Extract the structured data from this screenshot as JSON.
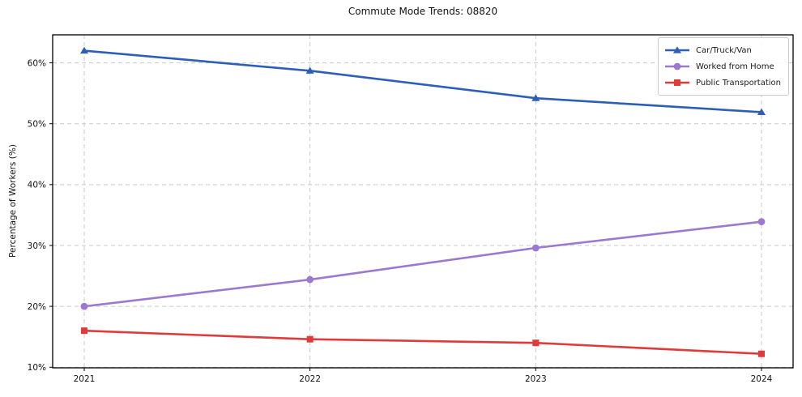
{
  "chart_data": {
    "type": "line",
    "title": "Commute Mode Trends: 08820",
    "xlabel": "",
    "ylabel": "Percentage of Workers (%)",
    "x": [
      2021,
      2022,
      2023,
      2024
    ],
    "series": [
      {
        "name": "Car/Truck/Van",
        "values": [
          62.0,
          58.7,
          54.2,
          51.9
        ],
        "color": "#2d5fb8",
        "marker": "triangle"
      },
      {
        "name": "Worked from Home",
        "values": [
          20.0,
          24.4,
          29.6,
          33.9
        ],
        "color": "#9c79d1",
        "marker": "circle"
      },
      {
        "name": "Public Transportation",
        "values": [
          16.0,
          14.6,
          14.0,
          12.2
        ],
        "color": "#e03b3b",
        "marker": "square"
      }
    ],
    "ylim": [
      9.9,
      64.6
    ],
    "yticks": [
      10,
      20,
      30,
      40,
      50,
      60
    ],
    "ytick_suffix": "%",
    "grid": true,
    "grid_style": "dashed",
    "legend_position": "top-right"
  }
}
